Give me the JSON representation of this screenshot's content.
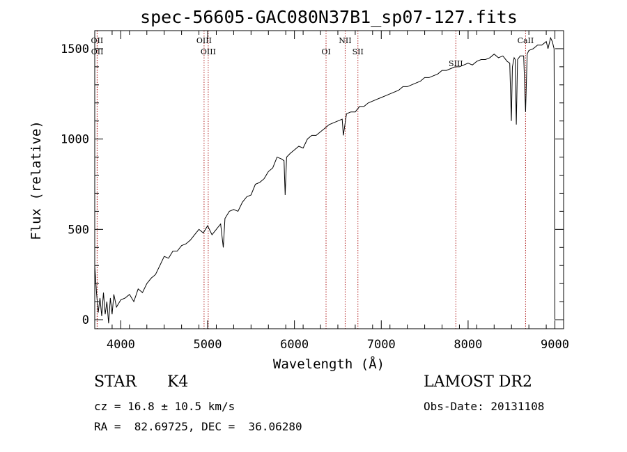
{
  "chart_data": {
    "type": "line",
    "title": "spec-56605-GAC080N37B1_sp07-127.fits",
    "xlabel": "Wavelength (Å)",
    "ylabel": "Flux (relative)",
    "xlim": [
      3700,
      9100
    ],
    "ylim": [
      -50,
      1600
    ],
    "xticks": [
      4000,
      5000,
      6000,
      7000,
      8000,
      9000
    ],
    "yticks": [
      0,
      500,
      1000,
      1500
    ],
    "grid": false,
    "line_color": "#000000",
    "marker_color": "#b22222",
    "series": [
      {
        "x": [
          3700,
          3720,
          3740,
          3760,
          3780,
          3800,
          3820,
          3840,
          3860,
          3880,
          3900,
          3920,
          3950,
          4000,
          4050,
          4100,
          4150,
          4200,
          4250,
          4300,
          4350,
          4400,
          4450,
          4500,
          4550,
          4600,
          4650,
          4700,
          4750,
          4800,
          4850,
          4900,
          4950,
          5000,
          5050,
          5100,
          5150,
          5180,
          5200,
          5250,
          5300,
          5350,
          5400,
          5450,
          5500,
          5550,
          5600,
          5650,
          5700,
          5750,
          5800,
          5850,
          5880,
          5893,
          5910,
          5950,
          6000,
          6050,
          6100,
          6150,
          6200,
          6250,
          6300,
          6350,
          6400,
          6450,
          6500,
          6550,
          6563,
          6600,
          6650,
          6700,
          6750,
          6800,
          6850,
          6900,
          6950,
          7000,
          7050,
          7100,
          7150,
          7200,
          7250,
          7300,
          7350,
          7400,
          7450,
          7500,
          7550,
          7600,
          7650,
          7700,
          7750,
          7800,
          7850,
          7900,
          7950,
          8000,
          8050,
          8100,
          8150,
          8200,
          8250,
          8300,
          8350,
          8400,
          8450,
          8480,
          8498,
          8510,
          8530,
          8542,
          8555,
          8570,
          8600,
          8640,
          8662,
          8680,
          8700,
          8750,
          8800,
          8850,
          8900,
          8920,
          8950,
          8970,
          8990,
          9000
        ],
        "y": [
          300,
          150,
          40,
          120,
          20,
          150,
          30,
          100,
          -20,
          120,
          30,
          140,
          70,
          110,
          120,
          140,
          100,
          170,
          150,
          200,
          230,
          250,
          300,
          350,
          340,
          380,
          380,
          410,
          420,
          440,
          470,
          500,
          480,
          520,
          470,
          500,
          530,
          400,
          560,
          600,
          610,
          600,
          650,
          680,
          690,
          750,
          760,
          780,
          820,
          840,
          900,
          890,
          880,
          690,
          900,
          920,
          940,
          960,
          950,
          1000,
          1020,
          1020,
          1040,
          1060,
          1080,
          1090,
          1100,
          1110,
          1020,
          1140,
          1150,
          1150,
          1180,
          1180,
          1200,
          1210,
          1220,
          1230,
          1240,
          1250,
          1260,
          1270,
          1290,
          1290,
          1300,
          1310,
          1320,
          1340,
          1340,
          1350,
          1360,
          1380,
          1380,
          1390,
          1400,
          1400,
          1410,
          1420,
          1410,
          1430,
          1440,
          1440,
          1450,
          1470,
          1450,
          1460,
          1430,
          1420,
          1100,
          1400,
          1450,
          1440,
          1080,
          1440,
          1460,
          1460,
          1150,
          1470,
          1490,
          1500,
          1520,
          1520,
          1540,
          1500,
          1560,
          1540,
          1500,
          0
        ]
      }
    ],
    "lines": [
      {
        "label": "OII",
        "x": 3727,
        "row": 1
      },
      {
        "label": "OII",
        "x": 3729,
        "row": 2
      },
      {
        "label": "OIII",
        "x": 4959,
        "row": 1
      },
      {
        "label": "OIII",
        "x": 5007,
        "row": 2
      },
      {
        "label": "OI",
        "x": 6364,
        "row": 2
      },
      {
        "label": "NII",
        "x": 6584,
        "row": 1
      },
      {
        "label": "SII",
        "x": 6731,
        "row": 2
      },
      {
        "label": "SIII",
        "x": 7859,
        "row": 3
      },
      {
        "label": "CaII",
        "x": 8662,
        "row": 1
      }
    ]
  },
  "info": {
    "object_class": "STAR",
    "subclass": "K4",
    "redshift": "cz = 16.8 ± 10.5 km/s",
    "coords": "RA =  82.69725, DEC =  36.06280",
    "survey": "LAMOST DR2",
    "obs_date": "Obs-Date: 20131108"
  }
}
